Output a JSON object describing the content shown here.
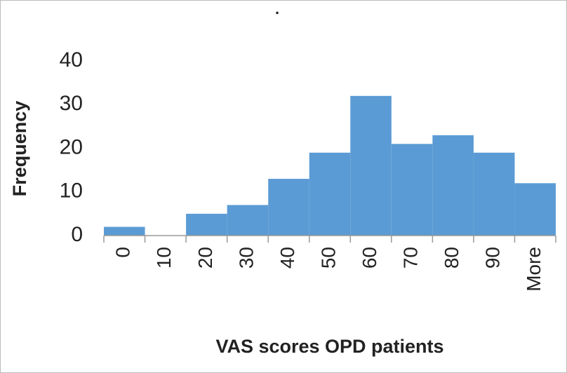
{
  "chart_data": {
    "type": "bar",
    "title": ".",
    "x_label": "VAS scores OPD patients",
    "y_label": "Frequency",
    "categories": [
      "0",
      "10",
      "20",
      "30",
      "40",
      "50",
      "60",
      "70",
      "80",
      "90",
      "More"
    ],
    "values": [
      2,
      0,
      5,
      7,
      13,
      19,
      32,
      21,
      23,
      19,
      12
    ],
    "color": "#5b9bd5",
    "ylim": [
      0,
      40
    ],
    "yticks": [
      0,
      10,
      20,
      30,
      40
    ],
    "grid": false
  }
}
